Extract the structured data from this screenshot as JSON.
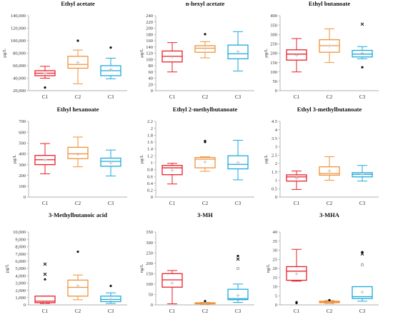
{
  "colors": {
    "C1": "#e8202a",
    "C2": "#f0923a",
    "C3": "#1ea9db",
    "outlier": "#111111",
    "mean": "#c0c0c0",
    "axis": "#999999"
  },
  "chart_data": [
    {
      "type": "boxplot",
      "title": "Ethyl acetate",
      "ylabel": "µg/L",
      "yticks": [
        20000,
        40000,
        60000,
        80000,
        100000,
        120000,
        140000
      ],
      "tick_labels": [
        "20,000",
        "40,000",
        "60,000",
        "80,000",
        "100,000",
        "120,000",
        "140,000"
      ],
      "ylim": [
        20000,
        140000
      ],
      "categories": [
        "C1",
        "C2",
        "C3"
      ],
      "boxes": [
        {
          "name": "C1",
          "min": 40000,
          "q1": 44000,
          "median": 48000,
          "q3": 52000,
          "max": 59000,
          "mean": 48000,
          "outliers": [
            {
              "value": 25000,
              "symbol": "dot"
            }
          ]
        },
        {
          "name": "C2",
          "min": 31000,
          "q1": 56000,
          "median": 62000,
          "q3": 75000,
          "max": 85000,
          "mean": 65000,
          "outliers": [
            {
              "value": 100000,
              "symbol": "dot"
            }
          ]
        },
        {
          "name": "C3",
          "min": 39000,
          "q1": 44000,
          "median": 52000,
          "q3": 60000,
          "max": 72000,
          "mean": 54000,
          "outliers": [
            {
              "value": 89000,
              "symbol": "dot"
            }
          ]
        }
      ]
    },
    {
      "type": "boxplot",
      "title": "n-hexyl acetate",
      "ylabel": "µg/L",
      "yticks": [
        0,
        20,
        40,
        60,
        80,
        100,
        120,
        140,
        160,
        180,
        200,
        220,
        240
      ],
      "tick_labels": [
        "0",
        "20",
        "40",
        "60",
        "80",
        "100",
        "120",
        "140",
        "160",
        "180",
        "200",
        "220",
        "240"
      ],
      "ylim": [
        0,
        240
      ],
      "categories": [
        "C1",
        "C2",
        "C3"
      ],
      "boxes": [
        {
          "name": "C1",
          "min": 60,
          "q1": 92,
          "median": 110,
          "q3": 127,
          "max": 154,
          "mean": 108,
          "outliers": []
        },
        {
          "name": "C2",
          "min": 105,
          "q1": 123,
          "median": 136,
          "q3": 144,
          "max": 157,
          "mean": 135,
          "outliers": [
            {
              "value": 181,
              "symbol": "dot"
            }
          ]
        },
        {
          "name": "C3",
          "min": 63,
          "q1": 102,
          "median": 118,
          "q3": 146,
          "max": 189,
          "mean": 125,
          "outliers": []
        }
      ]
    },
    {
      "type": "boxplot",
      "title": "Ethyl butanoate",
      "ylabel": "µg/L",
      "yticks": [
        0,
        50,
        100,
        150,
        200,
        250,
        300,
        350,
        400
      ],
      "tick_labels": [
        "0",
        "50",
        "100",
        "150",
        "200",
        "250",
        "300",
        "350",
        "400"
      ],
      "ylim": [
        0,
        400
      ],
      "categories": [
        "C1",
        "C2",
        "C3"
      ],
      "boxes": [
        {
          "name": "C1",
          "min": 100,
          "q1": 163,
          "median": 195,
          "q3": 218,
          "max": 278,
          "mean": 190,
          "outliers": []
        },
        {
          "name": "C2",
          "min": 150,
          "q1": 205,
          "median": 240,
          "q3": 272,
          "max": 330,
          "mean": 240,
          "outliers": []
        },
        {
          "name": "C3",
          "min": 170,
          "q1": 180,
          "median": 195,
          "q3": 215,
          "max": 235,
          "mean": 200,
          "outliers": [
            {
              "value": 355,
              "symbol": "x"
            },
            {
              "value": 125,
              "symbol": "dot"
            }
          ]
        }
      ]
    },
    {
      "type": "boxplot",
      "title": "Ethyl hexanoate",
      "ylabel": "µg/L",
      "yticks": [
        0,
        100,
        200,
        300,
        400,
        500,
        600,
        700
      ],
      "tick_labels": [
        "0",
        "100",
        "200",
        "300",
        "400",
        "500",
        "600",
        "700"
      ],
      "ylim": [
        0,
        700
      ],
      "categories": [
        "C1",
        "C2",
        "C3"
      ],
      "boxes": [
        {
          "name": "C1",
          "min": 215,
          "q1": 300,
          "median": 345,
          "q3": 385,
          "max": 495,
          "mean": 345,
          "outliers": []
        },
        {
          "name": "C2",
          "min": 280,
          "q1": 355,
          "median": 400,
          "q3": 460,
          "max": 555,
          "mean": 395,
          "outliers": []
        },
        {
          "name": "C3",
          "min": 195,
          "q1": 285,
          "median": 330,
          "q3": 360,
          "max": 435,
          "mean": 315,
          "outliers": []
        }
      ]
    },
    {
      "type": "boxplot",
      "title": "Ethyl 2-methylbutanoate",
      "ylabel": "µg/L",
      "yticks": [
        0,
        0.2,
        0.4,
        0.6,
        0.8,
        1,
        1.2,
        1.4,
        1.6,
        1.8,
        2,
        2.2
      ],
      "tick_labels": [
        "0",
        "0.2",
        "0.4",
        "0.6",
        "0.8",
        "1",
        "1.2",
        "1.4",
        "1.6",
        "1.8",
        "2",
        "2.2"
      ],
      "ylim": [
        0,
        2.2
      ],
      "categories": [
        "C1",
        "C2",
        "C3"
      ],
      "boxes": [
        {
          "name": "C1",
          "min": 0.38,
          "q1": 0.65,
          "median": 0.85,
          "q3": 0.92,
          "max": 0.98,
          "mean": 0.78,
          "outliers": []
        },
        {
          "name": "C2",
          "min": 0.75,
          "q1": 0.85,
          "median": 1.1,
          "q3": 1.15,
          "max": 1.17,
          "mean": 1.02,
          "outliers": [
            {
              "value": 1.6,
              "symbol": "dot"
            },
            {
              "value": 1.63,
              "symbol": "dot"
            }
          ]
        },
        {
          "name": "C3",
          "min": 0.5,
          "q1": 0.82,
          "median": 0.95,
          "q3": 1.2,
          "max": 1.65,
          "mean": 1.0,
          "outliers": []
        }
      ]
    },
    {
      "type": "boxplot",
      "title": "Ethyl 3-methylbutanoate",
      "ylabel": "µg/L",
      "yticks": [
        0,
        0.5,
        1,
        1.5,
        2,
        2.5,
        3,
        3.5,
        4,
        4.5
      ],
      "tick_labels": [
        "0",
        "0.5",
        "1",
        "1.5",
        "2",
        "2.5",
        "3",
        "3.5",
        "4",
        "4.5"
      ],
      "ylim": [
        0,
        4.5
      ],
      "categories": [
        "C1",
        "C2",
        "C3"
      ],
      "boxes": [
        {
          "name": "C1",
          "min": 0.45,
          "q1": 0.95,
          "median": 1.2,
          "q3": 1.32,
          "max": 1.55,
          "mean": 1.12,
          "outliers": []
        },
        {
          "name": "C2",
          "min": 1.0,
          "q1": 1.3,
          "median": 1.4,
          "q3": 1.8,
          "max": 2.4,
          "mean": 1.55,
          "outliers": []
        },
        {
          "name": "C3",
          "min": 0.95,
          "q1": 1.2,
          "median": 1.35,
          "q3": 1.45,
          "max": 1.88,
          "mean": 1.35,
          "outliers": []
        }
      ]
    },
    {
      "type": "boxplot",
      "title": "3-Methylbutanoic acid",
      "ylabel": "µg/L",
      "yticks": [
        0,
        1000,
        2000,
        3000,
        4000,
        5000,
        6000,
        7000,
        8000,
        9000,
        10000
      ],
      "tick_labels": [
        "0",
        "1,000",
        "2,000",
        "3,000",
        "4,000",
        "5,000",
        "6,000",
        "7,000",
        "8,000",
        "9,000",
        "10,000"
      ],
      "ylim": [
        0,
        10000
      ],
      "categories": [
        "C1",
        "C2",
        "C3"
      ],
      "boxes": [
        {
          "name": "C1",
          "min": 200,
          "q1": 300,
          "median": 500,
          "q3": 1200,
          "max": 1200,
          "mean": 400,
          "outliers": [
            {
              "value": 5600,
              "symbol": "x"
            },
            {
              "value": 4200,
              "symbol": "x"
            },
            {
              "value": 3500,
              "symbol": "dot"
            }
          ]
        },
        {
          "name": "C2",
          "min": 700,
          "q1": 1200,
          "median": 2400,
          "q3": 3400,
          "max": 4100,
          "mean": 2600,
          "outliers": [
            {
              "value": 7300,
              "symbol": "dot"
            }
          ]
        },
        {
          "name": "C3",
          "min": 200,
          "q1": 450,
          "median": 750,
          "q3": 1200,
          "max": 1650,
          "mean": 800,
          "outliers": [
            {
              "value": 2600,
              "symbol": "dot"
            }
          ]
        }
      ]
    },
    {
      "type": "boxplot",
      "title": "3-MH",
      "ylabel": "ng/L",
      "yticks": [
        0,
        50,
        100,
        150,
        200,
        250,
        300,
        350
      ],
      "tick_labels": [
        "0",
        "50",
        "100",
        "150",
        "200",
        "250",
        "300",
        "350"
      ],
      "ylim": [
        0,
        350
      ],
      "categories": [
        "C1",
        "C2",
        "C3"
      ],
      "boxes": [
        {
          "name": "C1",
          "min": 5,
          "q1": 85,
          "median": 120,
          "q3": 150,
          "max": 165,
          "mean": 105,
          "outliers": []
        },
        {
          "name": "C2",
          "min": 3,
          "q1": 5,
          "median": 8,
          "q3": 10,
          "max": 12,
          "mean": 8,
          "outliers": [
            {
              "value": 18,
              "symbol": "dot"
            }
          ]
        },
        {
          "name": "C3",
          "min": 12,
          "q1": 25,
          "median": 30,
          "q3": 75,
          "max": 100,
          "mean": 45,
          "outliers": [
            {
              "value": 235,
              "symbol": "dot"
            },
            {
              "value": 220,
              "symbol": "x"
            },
            {
              "value": 175,
              "symbol": "ring"
            }
          ]
        }
      ]
    },
    {
      "type": "boxplot",
      "title": "3-MHA",
      "ylabel": "ng/L",
      "yticks": [
        0,
        5,
        10,
        15,
        20,
        25,
        30,
        35,
        40
      ],
      "tick_labels": [
        "0",
        "5",
        "10",
        "15",
        "20",
        "25",
        "30",
        "35",
        "40"
      ],
      "ylim": [
        0,
        40
      ],
      "categories": [
        "C1",
        "C2",
        "C3"
      ],
      "boxes": [
        {
          "name": "C1",
          "min": 13,
          "q1": 13.5,
          "median": 18.5,
          "q3": 21,
          "max": 30.5,
          "mean": 17,
          "outliers": [
            {
              "value": 1.5,
              "symbol": "dot"
            },
            {
              "value": 1,
              "symbol": "dot"
            }
          ]
        },
        {
          "name": "C2",
          "min": 0.8,
          "q1": 1.2,
          "median": 1.5,
          "q3": 2,
          "max": 2.4,
          "mean": 1.6,
          "outliers": [
            {
              "value": 2.6,
              "symbol": "dot"
            }
          ]
        },
        {
          "name": "C3",
          "min": 2,
          "q1": 3.5,
          "median": 4.5,
          "q3": 10,
          "max": 10,
          "mean": 7,
          "outliers": [
            {
              "value": 29,
              "symbol": "dot"
            },
            {
              "value": 28,
              "symbol": "x"
            },
            {
              "value": 22,
              "symbol": "ring"
            }
          ]
        }
      ]
    }
  ]
}
